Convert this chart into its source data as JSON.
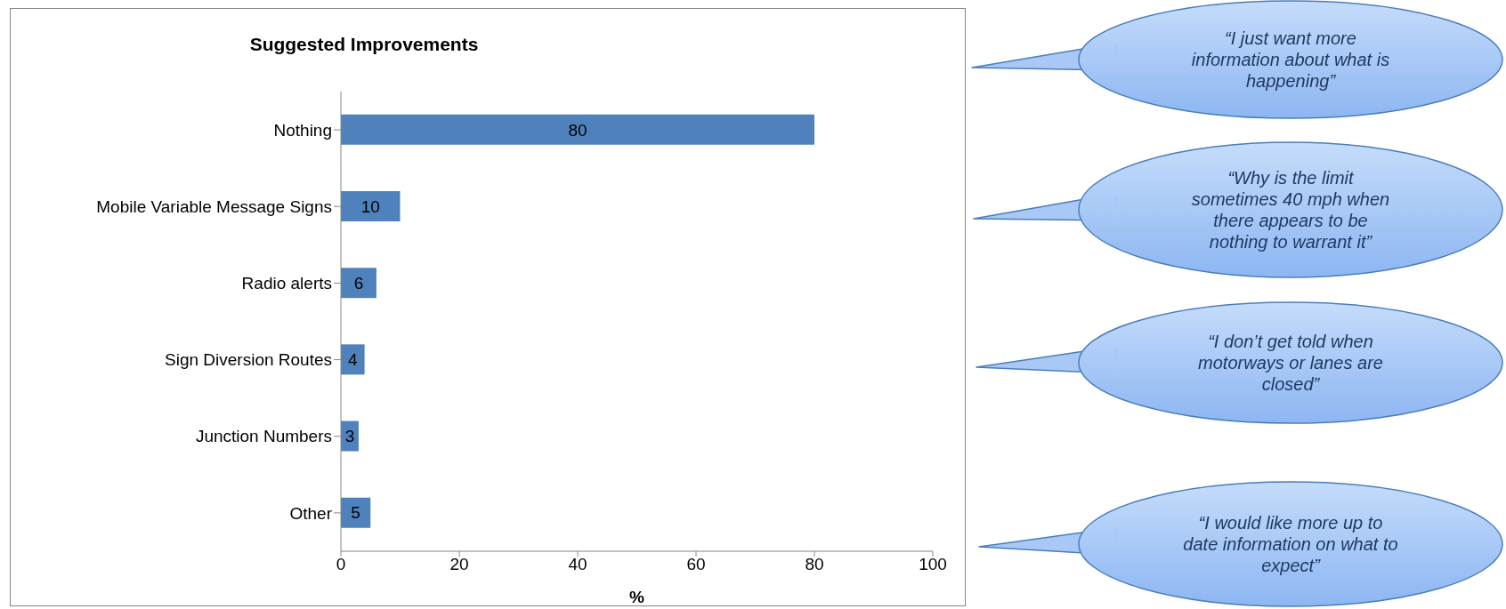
{
  "chart_data": {
    "type": "bar",
    "orientation": "horizontal",
    "title": "Suggested Improvements",
    "xlabel": "%",
    "categories": [
      "Nothing",
      "Mobile Variable Message Signs",
      "Radio alerts",
      "Sign Diversion Routes",
      "Junction Numbers",
      "Other"
    ],
    "values": [
      80,
      10,
      6,
      4,
      3,
      5
    ],
    "color": "#4f81bd",
    "xlim": [
      0,
      100
    ],
    "xticks": [
      0,
      20,
      40,
      60,
      80,
      100
    ],
    "grid": false,
    "legend": false,
    "data_labels": true,
    "annotations": [
      "“I just want more information about what is happening”",
      "“Why is the limit sometimes 40 mph when there appears to be nothing to warrant it”",
      "“I don’t get told when motorways or lanes are closed”",
      "“I would like more up to date information on what to expect”"
    ]
  }
}
